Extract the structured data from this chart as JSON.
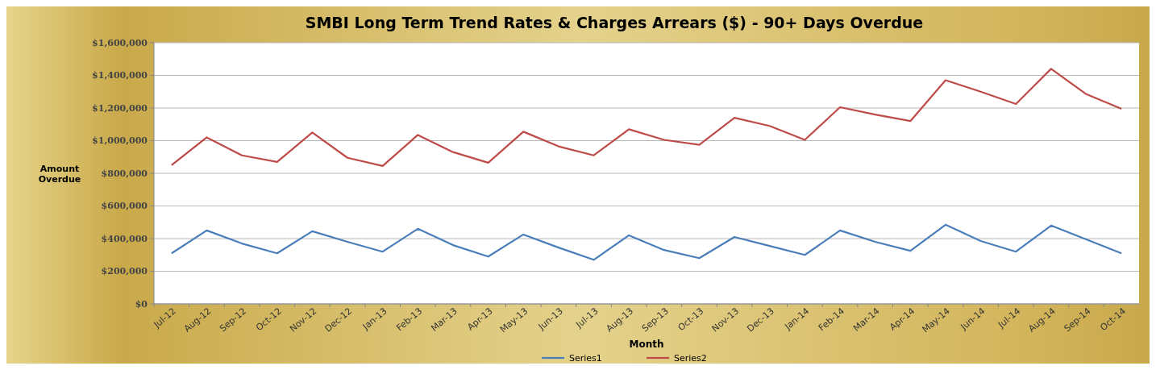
{
  "chart_data": {
    "type": "line",
    "title": "SMBI Long Term Trend Rates & Charges Arrears ($) - 90+ Days Overdue",
    "xlabel": "Month",
    "ylabel": "Amount Overdue",
    "categories": [
      "Jul-12",
      "Aug-12",
      "Sep-12",
      "Oct-12",
      "Nov-12",
      "Dec-12",
      "Jan-13",
      "Feb-13",
      "Mar-13",
      "Apr-13",
      "May-13",
      "Jun-13",
      "Jul-13",
      "Aug-13",
      "Sep-13",
      "Oct-13",
      "Nov-13",
      "Dec-13",
      "Jan-14",
      "Feb-14",
      "Mar-14",
      "Apr-14",
      "May-14",
      "Jun-14",
      "Jul-14",
      "Aug-14",
      "Sep-14",
      "Oct-14"
    ],
    "series": [
      {
        "name": "Series1",
        "color": "#4a7ebb",
        "values": [
          310000,
          450000,
          370000,
          310000,
          445000,
          380000,
          320000,
          460000,
          360000,
          290000,
          425000,
          345000,
          270000,
          420000,
          330000,
          280000,
          410000,
          355000,
          300000,
          450000,
          380000,
          325000,
          485000,
          385000,
          320000,
          480000,
          395000,
          310000
        ]
      },
      {
        "name": "Series2",
        "color": "#be4b48",
        "values": [
          850000,
          1020000,
          910000,
          870000,
          1050000,
          895000,
          845000,
          1035000,
          930000,
          865000,
          1055000,
          965000,
          910000,
          1070000,
          1005000,
          975000,
          1140000,
          1090000,
          1005000,
          1205000,
          1160000,
          1120000,
          1370000,
          1300000,
          1225000,
          1440000,
          1285000,
          1195000
        ]
      }
    ],
    "ylim": [
      0,
      1600000
    ],
    "yticks": [
      {
        "value": 0,
        "label": "$0"
      },
      {
        "value": 200000,
        "label": "$200,000"
      },
      {
        "value": 400000,
        "label": "$400,000"
      },
      {
        "value": 600000,
        "label": "$600,000"
      },
      {
        "value": 800000,
        "label": "$800,000"
      },
      {
        "value": 1000000,
        "label": "$1,000,000"
      },
      {
        "value": 1200000,
        "label": "$1,200,000"
      },
      {
        "value": 1400000,
        "label": "$1,400,000"
      },
      {
        "value": 1600000,
        "label": "$1,600,000"
      }
    ],
    "grid": "y",
    "legend": "bottom",
    "marker": "none",
    "line_style": "solid"
  }
}
